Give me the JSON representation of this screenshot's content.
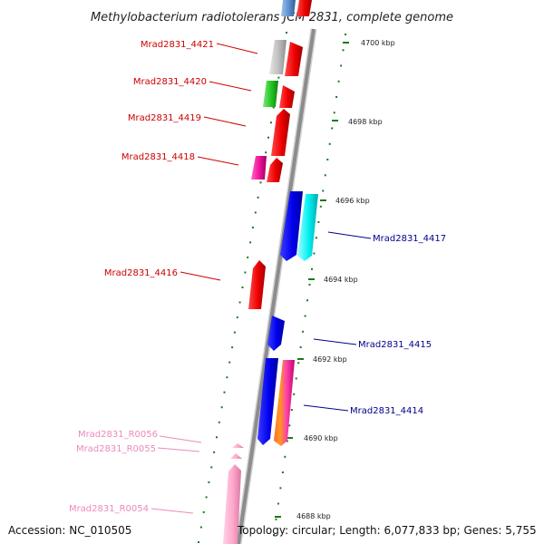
{
  "title": "Methylobacterium radiotolerans JCM 2831, complete genome",
  "footer": {
    "accession": "Accession: NC_010505",
    "topology": "Topology: circular; Length: 6,077,833 bp; Genes: 5,755"
  },
  "colors": {
    "backbone": "#8c8c8c",
    "tick": "#1a7a1a",
    "label_reverse": "#cc0000",
    "label_forward": "#00008b",
    "label_rna": "#ee88bb"
  },
  "kbp_labels": [
    "4700 kbp",
    "4698 kbp",
    "4696 kbp",
    "4694 kbp",
    "4692 kbp",
    "4690 kbp",
    "4688 kbp"
  ],
  "genes": [
    {
      "name": "Mrad2831_4421",
      "color": "#cc0000"
    },
    {
      "name": "Mrad2831_4420",
      "color": "#cc0000"
    },
    {
      "name": "Mrad2831_4419",
      "color": "#cc0000"
    },
    {
      "name": "Mrad2831_4418",
      "color": "#cc0000"
    },
    {
      "name": "Mrad2831_4417",
      "color": "#00008b"
    },
    {
      "name": "Mrad2831_4416",
      "color": "#cc0000"
    },
    {
      "name": "Mrad2831_4415",
      "color": "#00008b"
    },
    {
      "name": "Mrad2831_4414",
      "color": "#00008b"
    },
    {
      "name": "Mrad2831_R0056",
      "color": "#ee88bb"
    },
    {
      "name": "Mrad2831_R0055",
      "color": "#ee88bb"
    },
    {
      "name": "Mrad2831_R0054",
      "color": "#ee88bb"
    }
  ]
}
